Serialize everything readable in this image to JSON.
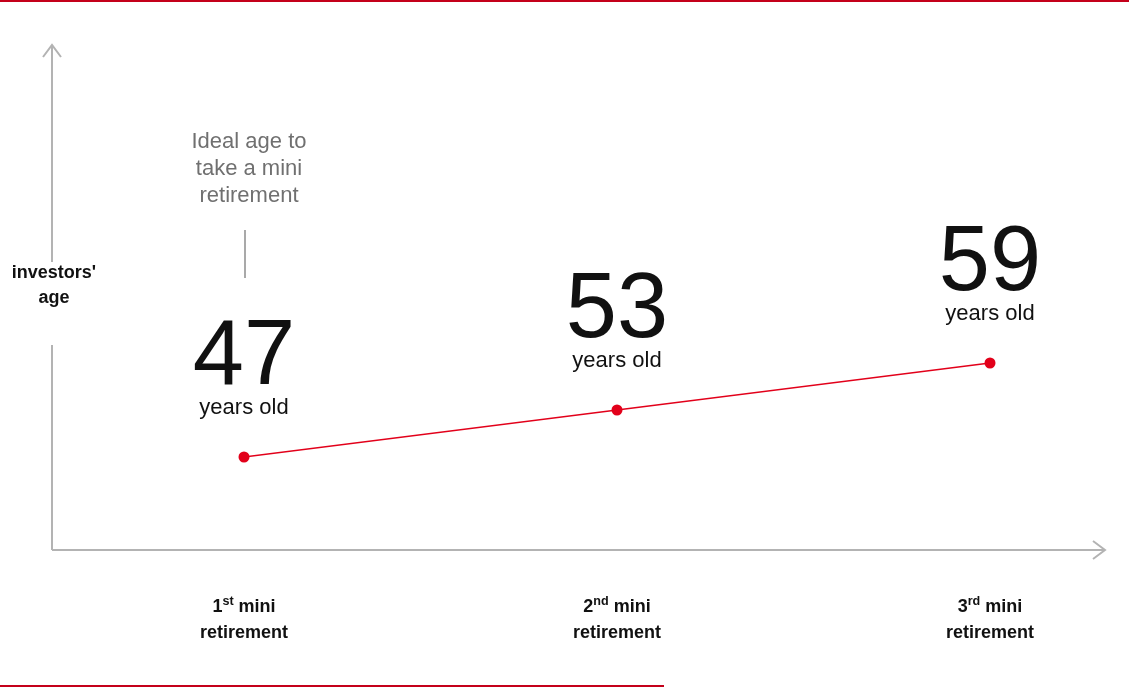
{
  "chart_data": {
    "type": "line",
    "ylabel": "investors' age",
    "categories": [
      "1$^{st}$ mini retirement",
      "2$^{nd}$ mini retirement",
      "3$^{rd}$ mini retirement"
    ],
    "series": [
      {
        "color": "#e2001a",
        "values": [
          47,
          53,
          59
        ]
      }
    ],
    "tick_labels": "x",
    "marker": "circle",
    "line_style": "solid",
    "data_labels": true,
    "annotations": [
      "Ideal age to take a mini retirement",
      {
        "text": "years old",
        "x": "1$^{st}$ mini retirement",
        "y": 47
      },
      {
        "text": "years old",
        "x": "2$^{nd}$ mini retirement",
        "y": 53
      },
      {
        "text": "years old",
        "x": "3$^{rd}$ mini retirement",
        "y": 59
      }
    ]
  }
}
